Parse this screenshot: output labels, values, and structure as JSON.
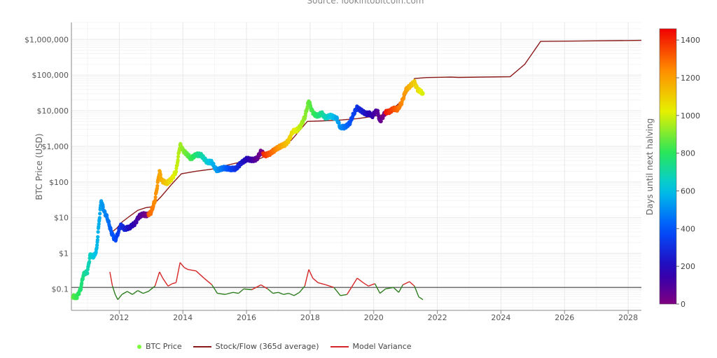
{
  "source_text": "Source: lookintobitcoin.com",
  "legend": {
    "btc_price": "BTC Price",
    "stock_flow": "Stock/Flow (365d average)",
    "model_variance": "Model Variance"
  },
  "colors": {
    "stock_flow": "#8b1a1a",
    "variance_positive": "#d62728",
    "variance_negative": "#2e7d1f",
    "baseline": "#555555",
    "btc_price_legend": "#7cfc3a"
  },
  "chart_data": {
    "type": "scatter",
    "y_scale": "log",
    "ylabel": "BTC Price (USD)",
    "colorbar_label": "Days until next halving",
    "xlim": [
      "2010-07-01",
      "2028-06-01"
    ],
    "ylim": [
      0.025,
      3000000
    ],
    "colorbar_range": [
      0,
      1460
    ],
    "y_ticks": [
      {
        "value": 0.1,
        "label": "$0.1"
      },
      {
        "value": 1,
        "label": "$1"
      },
      {
        "value": 10,
        "label": "$10"
      },
      {
        "value": 100,
        "label": "$100"
      },
      {
        "value": 1000,
        "label": "$1,000"
      },
      {
        "value": 10000,
        "label": "$10,000"
      },
      {
        "value": 100000,
        "label": "$100,000"
      },
      {
        "value": 1000000,
        "label": "$1,000,000"
      }
    ],
    "x_ticks": [
      "2012",
      "2014",
      "2016",
      "2018",
      "2020",
      "2022",
      "2024",
      "2026",
      "2028"
    ],
    "colorbar_ticks": [
      0,
      200,
      400,
      600,
      800,
      1000,
      1200,
      1400
    ],
    "halvings": [
      "2012-11-28",
      "2016-07-09",
      "2020-05-11"
    ],
    "series": [
      {
        "name": "BTC Price",
        "points": [
          [
            "2010-07-15",
            0.06
          ],
          [
            "2010-09-01",
            0.06
          ],
          [
            "2010-10-15",
            0.1
          ],
          [
            "2010-11-15",
            0.25
          ],
          [
            "2011-01-01",
            0.3
          ],
          [
            "2011-02-01",
            0.9
          ],
          [
            "2011-03-15",
            0.8
          ],
          [
            "2011-04-15",
            1.2
          ],
          [
            "2011-05-15",
            8
          ],
          [
            "2011-06-08",
            30
          ],
          [
            "2011-07-15",
            14
          ],
          [
            "2011-08-15",
            10
          ],
          [
            "2011-10-01",
            4
          ],
          [
            "2011-11-15",
            2.3
          ],
          [
            "2011-12-15",
            3.5
          ],
          [
            "2012-01-15",
            6
          ],
          [
            "2012-03-01",
            5
          ],
          [
            "2012-05-01",
            5.2
          ],
          [
            "2012-07-01",
            7
          ],
          [
            "2012-08-15",
            11
          ],
          [
            "2012-10-01",
            12
          ],
          [
            "2012-11-15",
            12
          ],
          [
            "2013-01-01",
            14
          ],
          [
            "2013-02-15",
            30
          ],
          [
            "2013-04-08",
            200
          ],
          [
            "2013-05-01",
            110
          ],
          [
            "2013-07-01",
            90
          ],
          [
            "2013-09-01",
            130
          ],
          [
            "2013-10-15",
            200
          ],
          [
            "2013-11-30",
            1100
          ],
          [
            "2014-01-01",
            800
          ],
          [
            "2014-02-15",
            600
          ],
          [
            "2014-04-01",
            450
          ],
          [
            "2014-06-01",
            600
          ],
          [
            "2014-08-01",
            550
          ],
          [
            "2014-10-01",
            380
          ],
          [
            "2014-12-01",
            350
          ],
          [
            "2015-01-15",
            220
          ],
          [
            "2015-04-01",
            240
          ],
          [
            "2015-06-15",
            240
          ],
          [
            "2015-09-01",
            230
          ],
          [
            "2015-11-01",
            350
          ],
          [
            "2016-01-01",
            430
          ],
          [
            "2016-03-01",
            420
          ],
          [
            "2016-05-01",
            450
          ],
          [
            "2016-06-15",
            700
          ],
          [
            "2016-08-01",
            580
          ],
          [
            "2016-10-01",
            620
          ],
          [
            "2016-12-15",
            900
          ],
          [
            "2017-02-01",
            1000
          ],
          [
            "2017-03-15",
            1100
          ],
          [
            "2017-05-01",
            1500
          ],
          [
            "2017-06-15",
            2600
          ],
          [
            "2017-08-01",
            2800
          ],
          [
            "2017-09-15",
            3800
          ],
          [
            "2017-11-01",
            6500
          ],
          [
            "2017-12-17",
            19000
          ],
          [
            "2018-01-15",
            11000
          ],
          [
            "2018-02-15",
            8000
          ],
          [
            "2018-04-01",
            7000
          ],
          [
            "2018-05-15",
            8500
          ],
          [
            "2018-07-01",
            6400
          ],
          [
            "2018-09-01",
            7000
          ],
          [
            "2018-11-01",
            6300
          ],
          [
            "2018-12-15",
            3300
          ],
          [
            "2019-02-01",
            3500
          ],
          [
            "2019-04-01",
            4500
          ],
          [
            "2019-05-15",
            8000
          ],
          [
            "2019-06-26",
            12500
          ],
          [
            "2019-08-01",
            10500
          ],
          [
            "2019-10-01",
            8000
          ],
          [
            "2019-11-15",
            8500
          ],
          [
            "2019-12-15",
            7200
          ],
          [
            "2020-02-10",
            10200
          ],
          [
            "2020-03-13",
            5000
          ],
          [
            "2020-05-11",
            8800
          ],
          [
            "2020-07-01",
            9200
          ],
          [
            "2020-08-15",
            11800
          ],
          [
            "2020-10-01",
            10700
          ],
          [
            "2020-11-15",
            16000
          ],
          [
            "2021-01-08",
            40000
          ],
          [
            "2021-02-15",
            47000
          ],
          [
            "2021-04-14",
            62000
          ],
          [
            "2021-05-20",
            40000
          ],
          [
            "2021-06-15",
            36000
          ],
          [
            "2021-07-20",
            30000
          ]
        ]
      },
      {
        "name": "Stock/Flow (365d average)",
        "points": [
          [
            "2011-09-15",
            3.5
          ],
          [
            "2011-12-01",
            5
          ],
          [
            "2012-02-01",
            7.5
          ],
          [
            "2012-05-01",
            11
          ],
          [
            "2012-08-01",
            16
          ],
          [
            "2012-11-01",
            19
          ],
          [
            "2013-01-01",
            20
          ],
          [
            "2013-05-01",
            40
          ],
          [
            "2013-09-01",
            90
          ],
          [
            "2013-12-15",
            170
          ],
          [
            "2014-06-01",
            200
          ],
          [
            "2014-12-01",
            230
          ],
          [
            "2015-06-01",
            300
          ],
          [
            "2015-12-01",
            380
          ],
          [
            "2016-06-01",
            450
          ],
          [
            "2016-12-01",
            700
          ],
          [
            "2017-06-01",
            1500
          ],
          [
            "2017-12-01",
            5000
          ],
          [
            "2018-06-01",
            5200
          ],
          [
            "2019-01-01",
            5500
          ],
          [
            "2019-07-01",
            6000
          ],
          [
            "2020-01-01",
            7000
          ],
          [
            "2020-06-01",
            8000
          ],
          [
            "2020-12-01",
            20000
          ],
          [
            "2021-04-15",
            80000
          ],
          [
            "2021-09-01",
            85000
          ],
          [
            "2022-06-01",
            88000
          ],
          [
            "2022-09-01",
            86000
          ],
          [
            "2023-06-01",
            88000
          ],
          [
            "2024-04-15",
            90000
          ],
          [
            "2024-10-01",
            200000
          ],
          [
            "2025-04-01",
            880000
          ],
          [
            "2026-06-01",
            900000
          ],
          [
            "2028-06-01",
            940000
          ]
        ]
      },
      {
        "name": "Model Variance",
        "points": [
          [
            "2011-09-15",
            0.3
          ],
          [
            "2011-10-15",
            0.12
          ],
          [
            "2011-11-15",
            0.07
          ],
          [
            "2011-12-15",
            0.05
          ],
          [
            "2012-02-01",
            0.07
          ],
          [
            "2012-04-01",
            0.085
          ],
          [
            "2012-06-01",
            0.07
          ],
          [
            "2012-08-01",
            0.09
          ],
          [
            "2012-10-01",
            0.075
          ],
          [
            "2012-12-01",
            0.085
          ],
          [
            "2013-02-15",
            0.12
          ],
          [
            "2013-04-08",
            0.3
          ],
          [
            "2013-05-15",
            0.2
          ],
          [
            "2013-07-15",
            0.12
          ],
          [
            "2013-09-01",
            0.14
          ],
          [
            "2013-10-15",
            0.15
          ],
          [
            "2013-11-30",
            0.55
          ],
          [
            "2014-01-15",
            0.4
          ],
          [
            "2014-03-01",
            0.35
          ],
          [
            "2014-06-01",
            0.32
          ],
          [
            "2014-09-01",
            0.2
          ],
          [
            "2014-12-01",
            0.13
          ],
          [
            "2015-02-01",
            0.075
          ],
          [
            "2015-05-01",
            0.07
          ],
          [
            "2015-08-01",
            0.08
          ],
          [
            "2015-10-01",
            0.075
          ],
          [
            "2015-12-01",
            0.1
          ],
          [
            "2016-03-01",
            0.095
          ],
          [
            "2016-06-15",
            0.13
          ],
          [
            "2016-09-01",
            0.1
          ],
          [
            "2016-11-01",
            0.075
          ],
          [
            "2017-01-01",
            0.08
          ],
          [
            "2017-03-01",
            0.07
          ],
          [
            "2017-05-01",
            0.075
          ],
          [
            "2017-07-01",
            0.065
          ],
          [
            "2017-09-01",
            0.08
          ],
          [
            "2017-11-01",
            0.12
          ],
          [
            "2017-12-17",
            0.35
          ],
          [
            "2018-02-01",
            0.2
          ],
          [
            "2018-04-01",
            0.15
          ],
          [
            "2018-07-01",
            0.13
          ],
          [
            "2018-10-01",
            0.11
          ],
          [
            "2018-12-15",
            0.065
          ],
          [
            "2019-03-01",
            0.07
          ],
          [
            "2019-06-26",
            0.2
          ],
          [
            "2019-09-01",
            0.15
          ],
          [
            "2019-11-01",
            0.12
          ],
          [
            "2020-01-15",
            0.14
          ],
          [
            "2020-03-13",
            0.075
          ],
          [
            "2020-05-15",
            0.1
          ],
          [
            "2020-08-15",
            0.11
          ],
          [
            "2020-10-15",
            0.08
          ],
          [
            "2020-12-01",
            0.13
          ],
          [
            "2021-02-15",
            0.16
          ],
          [
            "2021-04-14",
            0.12
          ],
          [
            "2021-06-01",
            0.06
          ],
          [
            "2021-07-20",
            0.05
          ]
        ]
      }
    ],
    "variance_baseline": 0.11
  }
}
